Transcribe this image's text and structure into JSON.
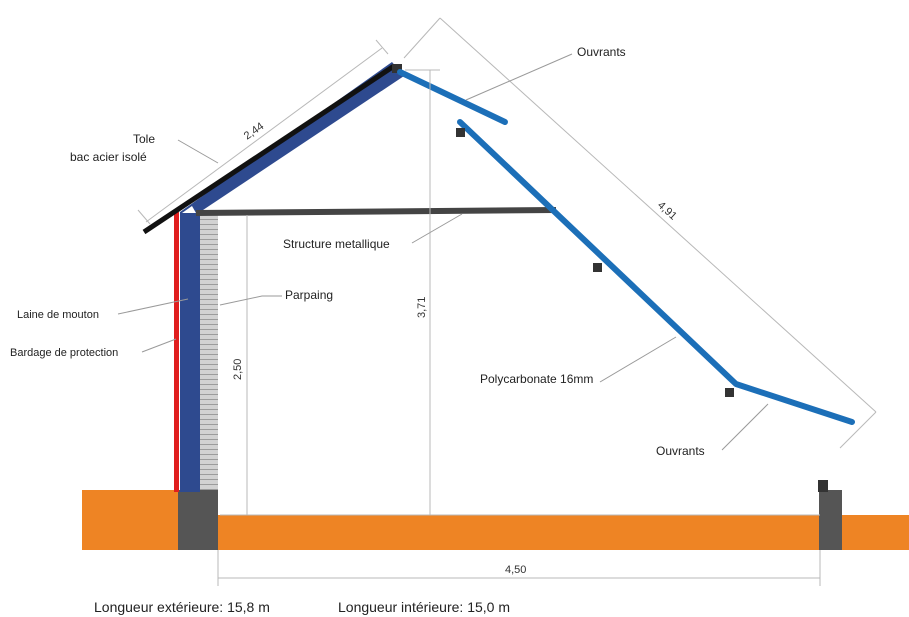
{
  "labels": {
    "tole_line1": "Tole",
    "tole_line2": "bac acier isolé",
    "ouvrants_top": "Ouvrants",
    "ouvrants_bottom": "Ouvrants",
    "structure": "Structure metallique",
    "parpaing": "Parpaing",
    "laine": "Laine de mouton",
    "bardage": "Bardage de protection",
    "polycarbonate": "Polycarbonate 16mm"
  },
  "dimensions": {
    "roof_length": "2,44",
    "glazing_length": "4,91",
    "ridge_height": "3,71",
    "wall_height": "2,50",
    "floor_width": "4,50"
  },
  "footer": {
    "exterior": "Longueur extérieure: 15,8 m",
    "interior": "Longueur intérieure: 15,0 m"
  },
  "colors": {
    "ground": "#EE8424",
    "insulation": "#2E4A8F",
    "glazing": "#1C6FB8",
    "cladding": "#E01E1E",
    "block": "#C8C8C8",
    "concrete": "#555555",
    "steel": "#444444"
  }
}
